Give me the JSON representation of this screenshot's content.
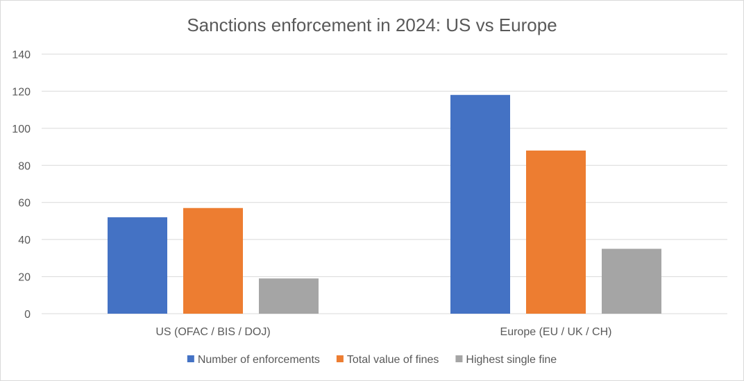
{
  "chart_data": {
    "type": "bar",
    "title": "Sanctions enforcement in 2024: US vs Europe",
    "categories": [
      "US (OFAC / BIS / DOJ)",
      "Europe (EU / UK / CH)"
    ],
    "series": [
      {
        "name": "Number of enforcements",
        "values": [
          52,
          118
        ],
        "color": "#4472C4"
      },
      {
        "name": "Total value of fines",
        "values": [
          57,
          88
        ],
        "color": "#ED7D31"
      },
      {
        "name": "Highest single fine",
        "values": [
          19,
          35
        ],
        "color": "#A5A5A5"
      }
    ],
    "ylim": [
      0,
      140
    ],
    "yticks": [
      0,
      20,
      40,
      60,
      80,
      100,
      120,
      140
    ],
    "ytick_labels": [
      "0",
      "20",
      "40",
      "60",
      "80",
      "100",
      "120",
      "140"
    ],
    "grid": true,
    "legend": "bottom"
  }
}
